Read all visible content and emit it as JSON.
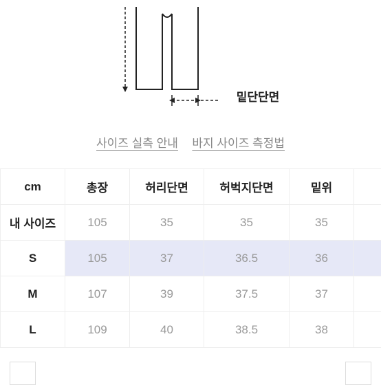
{
  "diagram": {
    "hem_label": "밑단단면",
    "stroke_color": "#222222",
    "dash": "4 3"
  },
  "links": {
    "guide": "사이즈 실측 안내",
    "method": "바지 사이즈 측정법"
  },
  "table": {
    "unit_label": "cm",
    "headers": [
      "총장",
      "허리단면",
      "허벅지단면",
      "밑위"
    ],
    "rows": [
      {
        "label": "내 사이즈",
        "values": [
          "105",
          "35",
          "35",
          "35"
        ],
        "class": "my-size"
      },
      {
        "label": "S",
        "values": [
          "105",
          "37",
          "36.5",
          "36"
        ],
        "class": "highlight"
      },
      {
        "label": "M",
        "values": [
          "107",
          "39",
          "37.5",
          "37"
        ],
        "class": ""
      },
      {
        "label": "L",
        "values": [
          "109",
          "40",
          "38.5",
          "38"
        ],
        "class": ""
      }
    ],
    "highlight_bg": "#e6e8f7"
  },
  "buttons": {
    "btn1_partial": "",
    "btn2_partial": ""
  }
}
